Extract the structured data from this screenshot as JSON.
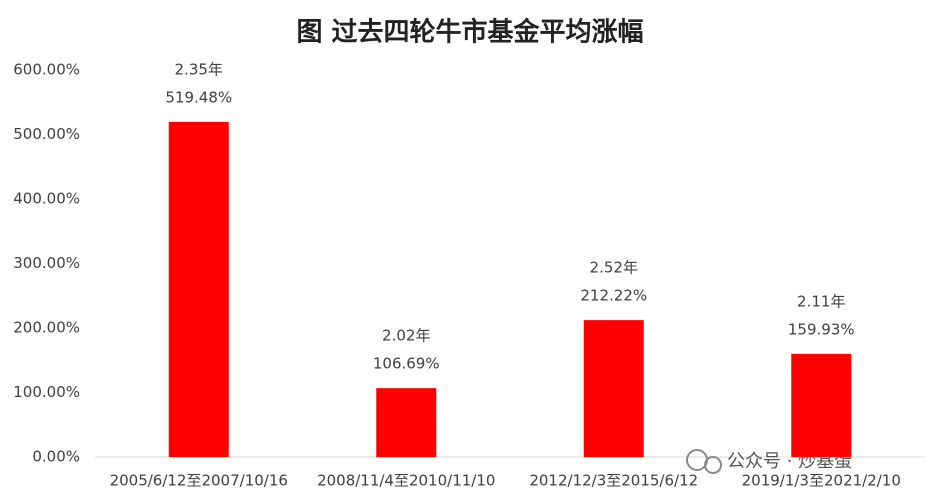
{
  "chart_data": {
    "type": "bar",
    "title": "图 过去四轮牛市基金平均涨幅",
    "categories": [
      "2005/6/12至2007/10/16",
      "2008/11/4至2010/11/10",
      "2012/12/3至2015/6/12",
      "2019/1/3至2021/2/10"
    ],
    "values": [
      519.48,
      106.69,
      212.22,
      159.93
    ],
    "value_labels": [
      "519.48%",
      "106.69%",
      "212.22%",
      "159.93%"
    ],
    "durations": [
      "2.35年",
      "2.02年",
      "2.52年",
      "2.11年"
    ],
    "color": "#ff0000",
    "ylim": [
      0,
      600
    ],
    "yticks": [
      {
        "value": 0,
        "label": "0.00%"
      },
      {
        "value": 100,
        "label": "100.00%"
      },
      {
        "value": 200,
        "label": "200.00%"
      },
      {
        "value": 300,
        "label": "300.00%"
      },
      {
        "value": 400,
        "label": "400.00%"
      },
      {
        "value": 500,
        "label": "500.00%"
      },
      {
        "value": 600,
        "label": "600.00%"
      }
    ],
    "grid": false,
    "watermark": "公众号 · 炒基蛋"
  }
}
